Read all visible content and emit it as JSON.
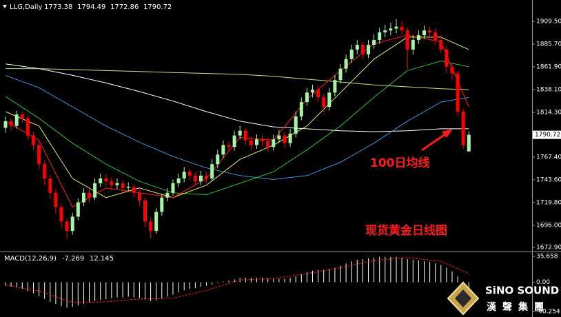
{
  "chart_data": [
    {
      "type": "candlestick",
      "title": "LLG,Daily",
      "up_color": "#a6f5a6",
      "down_color": "#ff0000",
      "open": [
        1798,
        1805,
        1800,
        1812,
        1808,
        1790,
        1780,
        1760,
        1745,
        1730,
        1715,
        1700,
        1690,
        1705,
        1720,
        1730,
        1725,
        1740,
        1745,
        1742,
        1738,
        1740,
        1735,
        1736,
        1730,
        1722,
        1700,
        1690,
        1710,
        1725,
        1730,
        1740,
        1745,
        1752,
        1748,
        1742,
        1748,
        1745,
        1760,
        1770,
        1780,
        1778,
        1790,
        1795,
        1785,
        1780,
        1786,
        1784,
        1778,
        1786,
        1790,
        1782,
        1792,
        1810,
        1825,
        1835,
        1838,
        1830,
        1820,
        1835,
        1848,
        1860,
        1870,
        1880,
        1885,
        1875,
        1885,
        1890,
        1898,
        1900,
        1902,
        1904,
        1900,
        1880,
        1890,
        1895,
        1900,
        1898,
        1890,
        1880,
        1862,
        1855,
        1815,
        1773.38
      ],
      "high": [
        1810,
        1808,
        1816,
        1815,
        1811,
        1794,
        1783,
        1764,
        1749,
        1734,
        1719,
        1703,
        1709,
        1724,
        1735,
        1734,
        1745,
        1750,
        1749,
        1746,
        1745,
        1743,
        1741,
        1739,
        1733,
        1725,
        1704,
        1714,
        1729,
        1735,
        1744,
        1750,
        1757,
        1755,
        1751,
        1753,
        1752,
        1765,
        1775,
        1785,
        1784,
        1795,
        1800,
        1798,
        1789,
        1791,
        1790,
        1788,
        1791,
        1796,
        1794,
        1797,
        1815,
        1830,
        1840,
        1843,
        1842,
        1834,
        1840,
        1853,
        1865,
        1875,
        1885,
        1890,
        1888,
        1890,
        1896,
        1903,
        1906,
        1908,
        1912,
        1910,
        1903,
        1895,
        1900,
        1905,
        1904,
        1902,
        1895,
        1884,
        1866,
        1858,
        1818,
        1794.49
      ],
      "low": [
        1793,
        1795,
        1797,
        1803,
        1785,
        1775,
        1755,
        1738,
        1724,
        1708,
        1693,
        1682,
        1686,
        1701,
        1716,
        1720,
        1722,
        1736,
        1737,
        1733,
        1734,
        1730,
        1731,
        1725,
        1716,
        1694,
        1682,
        1687,
        1706,
        1721,
        1727,
        1736,
        1741,
        1743,
        1737,
        1738,
        1740,
        1742,
        1756,
        1766,
        1773,
        1774,
        1786,
        1780,
        1775,
        1776,
        1779,
        1773,
        1774,
        1782,
        1777,
        1778,
        1788,
        1806,
        1821,
        1830,
        1825,
        1815,
        1816,
        1831,
        1844,
        1856,
        1866,
        1875,
        1870,
        1871,
        1881,
        1886,
        1893,
        1895,
        1897,
        1895,
        1860,
        1875,
        1886,
        1891,
        1893,
        1885,
        1876,
        1855,
        1848,
        1810,
        1776,
        1772.86
      ],
      "close": [
        1805,
        1800,
        1812,
        1808,
        1790,
        1780,
        1760,
        1745,
        1730,
        1715,
        1700,
        1690,
        1705,
        1720,
        1730,
        1725,
        1740,
        1745,
        1742,
        1738,
        1740,
        1735,
        1736,
        1730,
        1722,
        1700,
        1690,
        1710,
        1725,
        1730,
        1740,
        1745,
        1752,
        1748,
        1742,
        1748,
        1745,
        1760,
        1770,
        1780,
        1778,
        1790,
        1795,
        1785,
        1780,
        1786,
        1784,
        1778,
        1786,
        1790,
        1782,
        1792,
        1810,
        1825,
        1835,
        1838,
        1830,
        1820,
        1835,
        1848,
        1860,
        1870,
        1880,
        1885,
        1875,
        1885,
        1890,
        1898,
        1900,
        1902,
        1904,
        1900,
        1880,
        1890,
        1895,
        1900,
        1898,
        1890,
        1880,
        1862,
        1855,
        1815,
        1780,
        1790.72
      ],
      "overlays": [
        {
          "color": "#ffffff",
          "x": [
            0,
            6,
            12,
            18,
            24,
            30,
            36,
            42,
            48,
            54,
            60,
            66,
            72,
            78,
            83
          ],
          "values": [
            1865,
            1860,
            1853,
            1845,
            1836,
            1826,
            1815,
            1805,
            1799,
            1797,
            1795,
            1794,
            1795,
            1797,
            1797
          ]
        },
        {
          "color": "#b8e986",
          "x": [
            0,
            6,
            12,
            18,
            24,
            30,
            36,
            42,
            48,
            54,
            60,
            66,
            72,
            78,
            83
          ],
          "values": [
            1860,
            1860,
            1859,
            1858,
            1857,
            1856,
            1855,
            1854,
            1852,
            1849,
            1846,
            1843,
            1841,
            1839,
            1838
          ]
        },
        {
          "color": "#3a9ad9",
          "x": [
            0,
            6,
            12,
            18,
            24,
            30,
            36,
            42,
            48,
            54,
            60,
            66,
            72,
            78,
            83
          ],
          "values": [
            1853,
            1840,
            1820,
            1800,
            1783,
            1768,
            1756,
            1748,
            1744,
            1748,
            1762,
            1782,
            1805,
            1825,
            1830
          ]
        },
        {
          "color": "#2fbf2f",
          "x": [
            0,
            6,
            12,
            18,
            24,
            30,
            36,
            42,
            48,
            54,
            60,
            66,
            72,
            78,
            83
          ],
          "values": [
            1831,
            1808,
            1782,
            1760,
            1742,
            1730,
            1728,
            1740,
            1752,
            1775,
            1800,
            1830,
            1858,
            1868,
            1862
          ]
        },
        {
          "color": "#e8e86a",
          "x": [
            0,
            6,
            12,
            18,
            24,
            30,
            36,
            42,
            48,
            54,
            60,
            66,
            72,
            78,
            83
          ],
          "values": [
            1815,
            1800,
            1745,
            1725,
            1735,
            1725,
            1738,
            1765,
            1780,
            1800,
            1835,
            1870,
            1893,
            1893,
            1880
          ]
        },
        {
          "color": "#ff2020",
          "x": [
            0,
            6,
            12,
            18,
            24,
            30,
            36,
            42,
            48,
            54,
            60,
            66,
            72,
            78,
            83
          ],
          "values": [
            1805,
            1785,
            1715,
            1735,
            1730,
            1725,
            1745,
            1788,
            1785,
            1828,
            1858,
            1886,
            1895,
            1888,
            1820
          ]
        }
      ],
      "ylim": [
        1669.2,
        1931.9
      ],
      "yticks": [
        {
          "value": 1909.5,
          "label": "1909.50"
        },
        {
          "value": 1885.7,
          "label": "1885.70"
        },
        {
          "value": 1861.9,
          "label": "1861.90"
        },
        {
          "value": 1838.1,
          "label": "1838.10"
        },
        {
          "value": 1814.3,
          "label": "1814.30"
        },
        {
          "value": 1767.4,
          "label": "1767.40"
        },
        {
          "value": 1743.6,
          "label": "1743.60"
        },
        {
          "value": 1719.8,
          "label": "1719.80"
        },
        {
          "value": 1696,
          "label": "1696.00"
        },
        {
          "value": 1672.9,
          "label": "1672.90"
        }
      ],
      "last_price": 1790.72,
      "annotations": [
        "100日均线",
        "现货黄金日线图"
      ]
    },
    {
      "type": "macd",
      "title": "MACD(12,26,9)",
      "color": "#ffffff",
      "signal_color": "#ff2020",
      "values": [
        -5,
        -6,
        -7,
        -9,
        -12,
        -15,
        -19,
        -23,
        -27,
        -30,
        -33,
        -35,
        -34,
        -32,
        -30,
        -28,
        -26,
        -24,
        -23,
        -22,
        -21,
        -21,
        -20,
        -21,
        -22,
        -24,
        -26,
        -25,
        -23,
        -20,
        -17,
        -14,
        -11,
        -9,
        -8,
        -6,
        -5,
        -3,
        -1,
        1,
        2,
        4,
        6,
        6,
        6,
        6,
        6,
        5,
        5,
        5,
        5,
        6,
        8,
        11,
        14,
        16,
        17,
        17,
        18,
        20,
        23,
        26,
        29,
        31,
        32,
        33,
        34,
        35,
        35,
        35,
        35,
        34,
        32,
        31,
        30,
        29,
        28,
        26,
        24,
        20,
        15,
        8,
        1,
        -7.269
      ],
      "signal_x": [
        0,
        6,
        12,
        18,
        24,
        30,
        36,
        42,
        48,
        54,
        60,
        66,
        72,
        78,
        83
      ],
      "signal": [
        -4,
        -12,
        -28,
        -27,
        -23,
        -22,
        -11,
        3,
        5,
        12,
        20,
        30,
        34,
        29,
        12.145
      ],
      "ylim": [
        -46,
        41.4
      ],
      "yticks": [
        35.658,
        {
          "value": 0,
          "label": "0.00"
        },
        -40.254
      ]
    }
  ],
  "logo": {
    "name": "SiNO SOUND",
    "subtitle": "漢聲集團"
  }
}
